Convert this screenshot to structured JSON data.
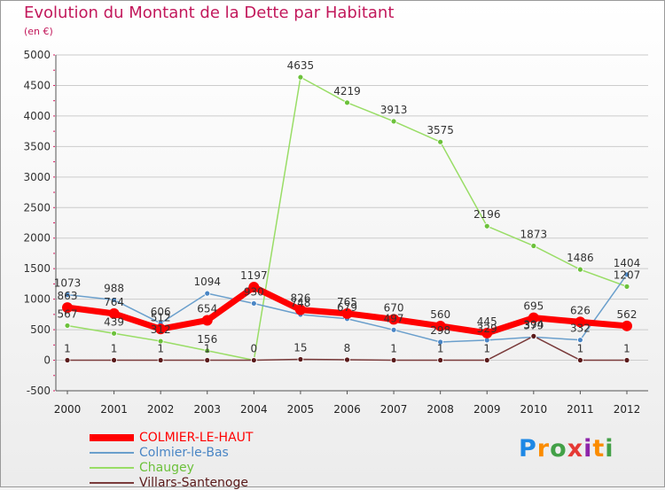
{
  "header": {
    "title": "Evolution du Montant de la Dette par Habitant",
    "subtitle": "(en €)"
  },
  "colors": {
    "title": "#c2185b",
    "axis": "#555555",
    "grid": "#cccccc",
    "tick_mark": "#d81b60"
  },
  "logo": {
    "text": "Proxiti",
    "letter_colors": [
      "#1e88e5",
      "#fb8c00",
      "#43a047",
      "#e53935",
      "#8e24aa",
      "#fb8c00",
      "#43a047"
    ]
  },
  "chart_data": {
    "type": "line",
    "title": "Evolution du Montant de la Dette par Habitant",
    "subtitle": "(en €)",
    "xlabel": "",
    "ylabel": "",
    "x": [
      "2000",
      "2001",
      "2002",
      "2003",
      "2004",
      "2005",
      "2006",
      "2007",
      "2008",
      "2009",
      "2010",
      "2011",
      "2012"
    ],
    "ylim": [
      -500,
      5000
    ],
    "yticks": [
      -500,
      0,
      500,
      1000,
      1500,
      2000,
      2500,
      3000,
      3500,
      4000,
      4500,
      5000
    ],
    "grid": "horizontal",
    "legend_position": "bottom-left",
    "series": [
      {
        "name": "COLMIER-LE-HAUT",
        "color": "#ff0000",
        "marker_color": "#ff0000",
        "width": 7,
        "values": [
          863,
          764,
          512,
          654,
          1197,
          826,
          765,
          670,
          560,
          445,
          695,
          626,
          562
        ]
      },
      {
        "name": "Colmier-le-Bas",
        "color": "#6a9fcc",
        "marker_color": "#4a86c5",
        "width": 1.5,
        "values": [
          1073,
          988,
          606,
          1094,
          930,
          748,
          679,
          497,
          298,
          329,
          379,
          332,
          1404
        ]
      },
      {
        "name": "Chaugey",
        "color": "#99dd66",
        "marker_color": "#6cc13b",
        "width": 1.5,
        "values": [
          567,
          439,
          312,
          156,
          0,
          4635,
          4219,
          3913,
          3575,
          2196,
          1873,
          1486,
          1207
        ]
      },
      {
        "name": "Villars-Santenoge",
        "color": "#7a3b3b",
        "marker_color": "#5a1a1a",
        "width": 1.5,
        "values": [
          1,
          1,
          1,
          1,
          0,
          15,
          8,
          1,
          1,
          1,
          394,
          1,
          1
        ]
      }
    ],
    "labels": [
      {
        "text": "863",
        "series": 0,
        "index": 0
      },
      {
        "text": "1073",
        "series": 1,
        "index": 0
      },
      {
        "text": "567",
        "series": 2,
        "index": 0
      },
      {
        "text": "1",
        "series": 3,
        "index": 0
      },
      {
        "text": "764",
        "series": 0,
        "index": 1
      },
      {
        "text": "988",
        "series": 1,
        "index": 1
      },
      {
        "text": "439",
        "series": 2,
        "index": 1
      },
      {
        "text": "1",
        "series": 3,
        "index": 1
      },
      {
        "text": "512",
        "series": 0,
        "index": 2
      },
      {
        "text": "606",
        "series": 1,
        "index": 2
      },
      {
        "text": "312",
        "series": 2,
        "index": 2
      },
      {
        "text": "1",
        "series": 3,
        "index": 2
      },
      {
        "text": "654",
        "series": 0,
        "index": 3
      },
      {
        "text": "1094",
        "series": 1,
        "index": 3
      },
      {
        "text": "156",
        "series": 2,
        "index": 3
      },
      {
        "text": "1",
        "series": 3,
        "index": 3
      },
      {
        "text": "1197",
        "series": 0,
        "index": 4
      },
      {
        "text": "930",
        "series": 1,
        "index": 4
      },
      {
        "text": "0",
        "series": 2,
        "index": 4
      },
      {
        "text": "826",
        "series": 0,
        "index": 5
      },
      {
        "text": "748",
        "series": 1,
        "index": 5
      },
      {
        "text": "4635",
        "series": 2,
        "index": 5
      },
      {
        "text": "15",
        "series": 3,
        "index": 5
      },
      {
        "text": "765",
        "series": 0,
        "index": 6
      },
      {
        "text": "679",
        "series": 1,
        "index": 6
      },
      {
        "text": "4219",
        "series": 2,
        "index": 6
      },
      {
        "text": "8",
        "series": 3,
        "index": 6
      },
      {
        "text": "670",
        "series": 0,
        "index": 7
      },
      {
        "text": "497",
        "series": 1,
        "index": 7
      },
      {
        "text": "3913",
        "series": 2,
        "index": 7
      },
      {
        "text": "1",
        "series": 3,
        "index": 7
      },
      {
        "text": "560",
        "series": 0,
        "index": 8
      },
      {
        "text": "298",
        "series": 1,
        "index": 8
      },
      {
        "text": "3575",
        "series": 2,
        "index": 8
      },
      {
        "text": "1",
        "series": 3,
        "index": 8
      },
      {
        "text": "445",
        "series": 0,
        "index": 9
      },
      {
        "text": "329",
        "series": 1,
        "index": 9
      },
      {
        "text": "2196",
        "series": 2,
        "index": 9
      },
      {
        "text": "1",
        "series": 3,
        "index": 9
      },
      {
        "text": "695",
        "series": 0,
        "index": 10
      },
      {
        "text": "379",
        "series": 1,
        "index": 10
      },
      {
        "text": "1873",
        "series": 2,
        "index": 10
      },
      {
        "text": "394",
        "series": 3,
        "index": 10
      },
      {
        "text": "626",
        "series": 0,
        "index": 11
      },
      {
        "text": "332",
        "series": 1,
        "index": 11
      },
      {
        "text": "1486",
        "series": 2,
        "index": 11
      },
      {
        "text": "1",
        "series": 3,
        "index": 11
      },
      {
        "text": "562",
        "series": 0,
        "index": 12
      },
      {
        "text": "1404",
        "series": 1,
        "index": 12
      },
      {
        "text": "1207",
        "series": 2,
        "index": 12
      },
      {
        "text": "1",
        "series": 3,
        "index": 12
      }
    ]
  }
}
